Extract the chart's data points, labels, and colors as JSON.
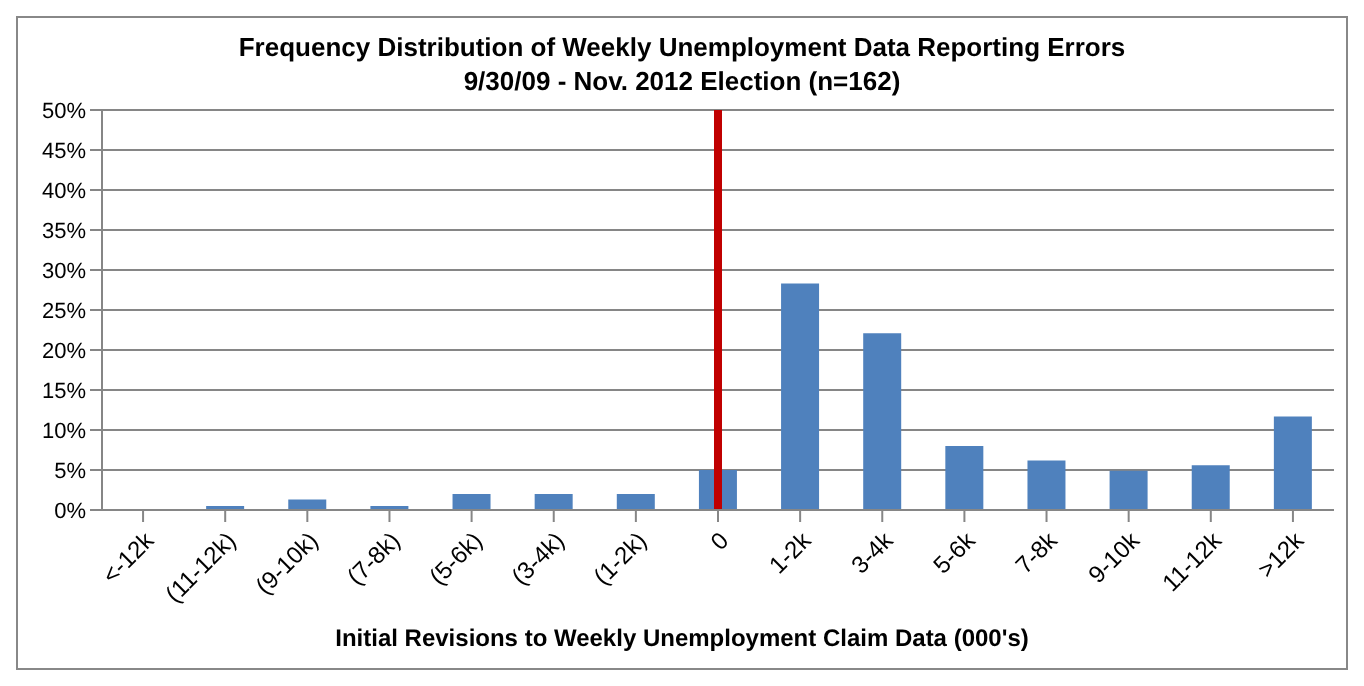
{
  "chart_data": {
    "type": "bar",
    "title": "Frequency Distribution of Weekly Unemployment Data Reporting Errors",
    "subtitle": "9/30/09 - Nov. 2012 Election (n=162)",
    "xlabel": "Initial Revisions to Weekly Unemployment Claim Data (000's)",
    "categories": [
      "<-12k",
      "(11-12k)",
      "(9-10k)",
      "(7-8k)",
      "(5-6k)",
      "(3-4k)",
      "(1-2k)",
      "0",
      "1-2k",
      "3-4k",
      "5-6k",
      "7-8k",
      "9-10k",
      "11-12k",
      ">12k"
    ],
    "values": [
      0,
      0.5,
      1.3,
      0.5,
      2.0,
      2.0,
      2.0,
      5.0,
      28.3,
      22.1,
      8.0,
      6.2,
      4.9,
      5.6,
      11.7
    ],
    "color": "#4f81bd",
    "ylim": [
      0,
      50
    ],
    "yticks": [
      {
        "value": 0,
        "label": "0%"
      },
      {
        "value": 5,
        "label": "5%"
      },
      {
        "value": 10,
        "label": "10%"
      },
      {
        "value": 15,
        "label": "15%"
      },
      {
        "value": 20,
        "label": "20%"
      },
      {
        "value": 25,
        "label": "25%"
      },
      {
        "value": 30,
        "label": "30%"
      },
      {
        "value": 35,
        "label": "35%"
      },
      {
        "value": 40,
        "label": "40%"
      },
      {
        "value": 45,
        "label": "45%"
      },
      {
        "value": 50,
        "label": "50%"
      }
    ],
    "grid": "y",
    "ref_lines": [
      {
        "axis": "x",
        "value": "0",
        "color": "#c00000"
      }
    ]
  }
}
